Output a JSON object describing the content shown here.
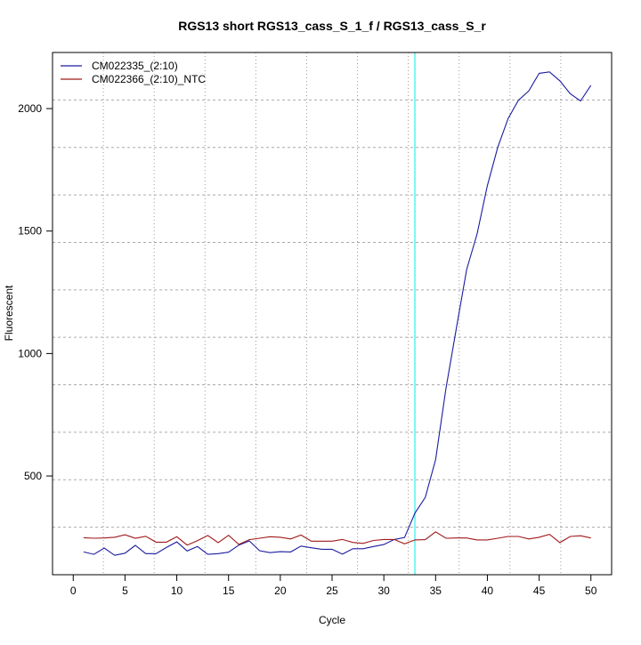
{
  "chart_data": {
    "type": "line",
    "title": "RGS13 short RGS13_cass_S_1_f / RGS13_cass_S_r",
    "xlabel": "Cycle",
    "ylabel": "Fluorescent",
    "xlim": [
      -2,
      52
    ],
    "ylim": [
      97,
      2229
    ],
    "xticks": [
      0,
      5,
      10,
      15,
      20,
      25,
      30,
      35,
      40,
      45,
      50
    ],
    "yticks": [
      500,
      1000,
      1500,
      2000
    ],
    "grid": true,
    "legend_position": "top-left",
    "threshold_cycle": 33,
    "threshold_color": "#7ff5f5",
    "x": [
      1,
      2,
      3,
      4,
      5,
      6,
      7,
      8,
      9,
      10,
      11,
      12,
      13,
      14,
      15,
      16,
      17,
      18,
      19,
      20,
      21,
      22,
      23,
      24,
      25,
      26,
      27,
      28,
      29,
      30,
      31,
      32,
      33,
      34,
      35,
      36,
      37,
      38,
      39,
      40,
      41,
      42,
      43,
      44,
      45,
      46,
      47,
      48,
      49,
      50
    ],
    "series": [
      {
        "name": "CM022335_(2:10)",
        "color": "#1c1ca0",
        "values": [
          190,
          180,
          206,
          176,
          185,
          217,
          183,
          183,
          208,
          231,
          194,
          212,
          180,
          183,
          189,
          218,
          235,
          195,
          187,
          191,
          190,
          214,
          207,
          201,
          201,
          181,
          203,
          203,
          212,
          220,
          241,
          249,
          348,
          413,
          567,
          857,
          1103,
          1343,
          1487,
          1685,
          1842,
          1959,
          2034,
          2072,
          2144,
          2150,
          2113,
          2061,
          2031,
          2095
        ]
      },
      {
        "name": "CM022366_(2:10)_NTC",
        "color": "#a01818",
        "values": [
          248,
          246,
          247,
          250,
          260,
          246,
          254,
          230,
          230,
          252,
          218,
          236,
          257,
          228,
          258,
          221,
          240,
          246,
          252,
          250,
          243,
          259,
          234,
          234,
          234,
          241,
          229,
          225,
          237,
          241,
          241,
          223,
          239,
          240,
          272,
          246,
          247,
          247,
          239,
          239,
          246,
          253,
          253,
          243,
          250,
          262,
          228,
          253,
          256,
          247
        ]
      }
    ]
  }
}
